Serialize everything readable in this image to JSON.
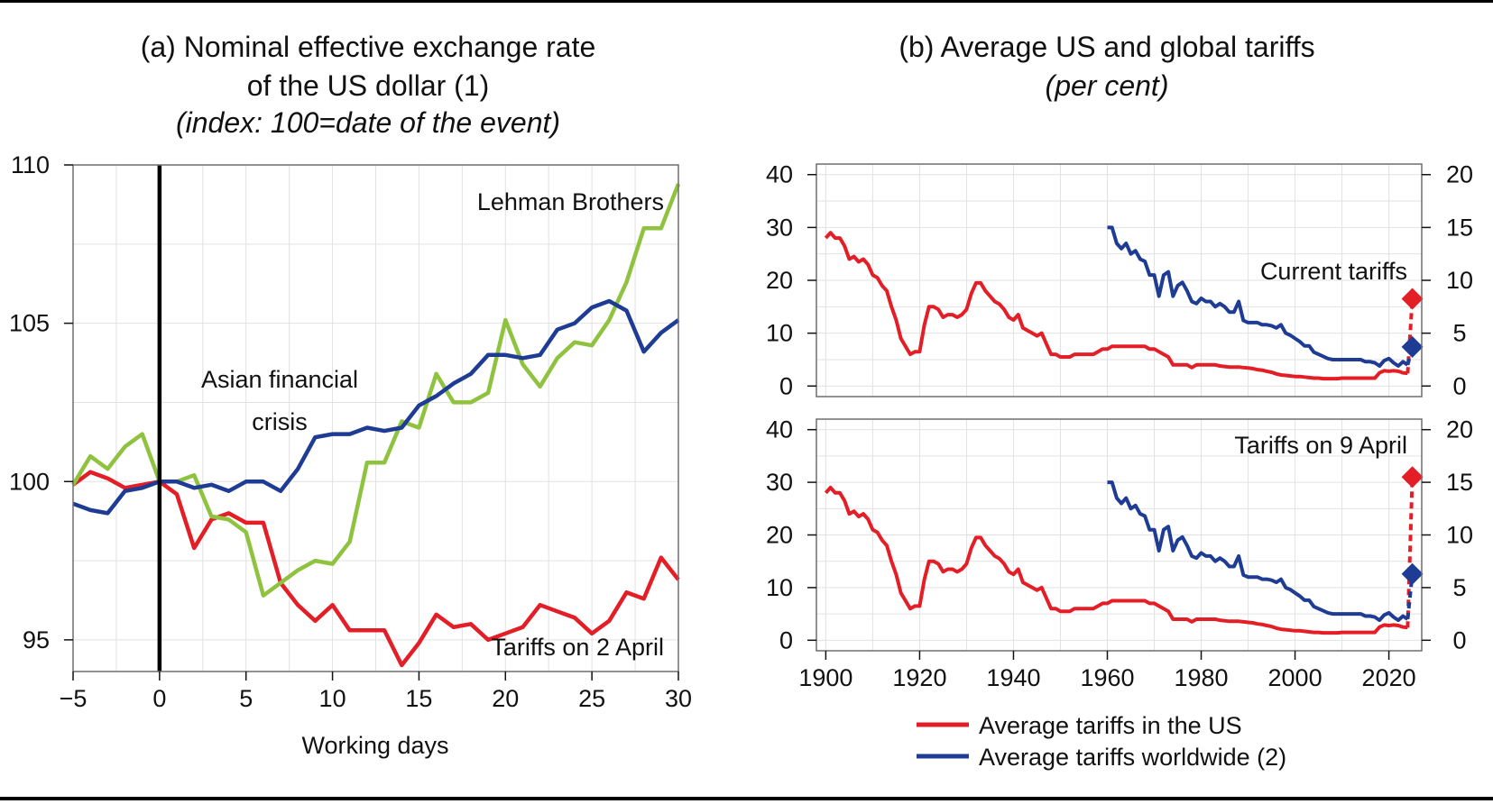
{
  "colors": {
    "red": "#e41e26",
    "green": "#8fc23f",
    "blue": "#1f3c94",
    "grid": "#e2e2e2",
    "frame": "#6e6e6e"
  },
  "panel_a": {
    "title_line1": "(a) Nominal effective exchange rate",
    "title_line2": "of the US dollar (1)",
    "subtitle": "(index: 100=date of the event)"
  },
  "panel_b": {
    "title": "(b) Average US and global tariffs",
    "subtitle": "(per cent)"
  },
  "chart_data": [
    {
      "id": "a",
      "type": "line",
      "title": "(a) Nominal effective exchange rate of the US dollar (1)",
      "subtitle": "(index: 100=date of the event)",
      "xlabel": "Working days",
      "ylabel": "",
      "xlim": [
        -5,
        30
      ],
      "ylim": [
        94,
        110
      ],
      "x_ticks": [
        "−5",
        "0",
        "5",
        "10",
        "15",
        "20",
        "25",
        "30"
      ],
      "y_ticks": [
        "95",
        "100",
        "105",
        "110"
      ],
      "grid": true,
      "event_line_x": 0,
      "annotations": [
        "Lehman Brothers",
        "Asian financial",
        "crisis",
        "Tariffs on 2 April"
      ],
      "x": [
        -5,
        -4,
        -3,
        -2,
        -1,
        0,
        1,
        2,
        3,
        4,
        5,
        6,
        7,
        8,
        9,
        10,
        11,
        12,
        13,
        14,
        15,
        16,
        17,
        18,
        19,
        20,
        21,
        22,
        23,
        24,
        25,
        26,
        27,
        28,
        29,
        30
      ],
      "series": [
        {
          "label": "Tariffs on 2 April",
          "color": "red",
          "values": [
            99.9,
            100.3,
            100.1,
            99.8,
            99.9,
            100,
            99.6,
            97.9,
            98.8,
            99.0,
            98.7,
            98.7,
            96.8,
            96.1,
            95.6,
            96.1,
            95.3,
            95.3,
            95.3,
            94.2,
            94.9,
            95.8,
            95.4,
            95.5,
            95.0,
            95.2,
            95.4,
            96.1,
            95.9,
            95.7,
            95.2,
            95.6,
            96.5,
            96.3,
            97.6,
            96.9
          ]
        },
        {
          "label": "Lehman Brothers",
          "color": "green",
          "values": [
            99.9,
            100.8,
            100.4,
            101.1,
            101.5,
            100,
            100.0,
            100.2,
            98.9,
            98.8,
            98.4,
            96.4,
            96.8,
            97.2,
            97.5,
            97.4,
            98.1,
            100.6,
            100.6,
            101.9,
            101.7,
            103.4,
            102.5,
            102.5,
            102.8,
            105.1,
            103.7,
            103.0,
            103.9,
            104.4,
            104.3,
            105.1,
            106.3,
            108.0,
            108.0,
            109.4
          ]
        },
        {
          "label": "Asian financial crisis",
          "color": "blue",
          "values": [
            99.3,
            99.1,
            99.0,
            99.7,
            99.8,
            100,
            100.0,
            99.8,
            99.9,
            99.7,
            100.0,
            100.0,
            99.7,
            100.4,
            101.4,
            101.5,
            101.5,
            101.7,
            101.6,
            101.7,
            102.4,
            102.7,
            103.1,
            103.4,
            104.0,
            104.0,
            103.9,
            104.0,
            104.8,
            105.0,
            105.5,
            105.7,
            105.4,
            104.1,
            104.7,
            105.1
          ]
        }
      ]
    },
    {
      "id": "b-top",
      "type": "line",
      "title": "(b) Average US and global tariffs",
      "subtitle": "(per cent)",
      "annotation": "Current tariffs",
      "xlim": [
        1898,
        2027
      ],
      "ylim_left": [
        -2,
        42
      ],
      "ylim_right": [
        -1,
        21
      ],
      "y_ticks_left": [
        "0",
        "10",
        "20",
        "30",
        "40"
      ],
      "y_ticks_right": [
        "0",
        "5",
        "10",
        "15",
        "20"
      ],
      "grid": true,
      "endpoints": {
        "us_2025": 16.5,
        "world_2025": 3.7
      },
      "series": [
        {
          "name": "Average tariffs in the US",
          "color": "red",
          "axis": "left",
          "points": [
            [
              1900,
              28
            ],
            [
              1901,
              29
            ],
            [
              1902,
              28
            ],
            [
              1903,
              28
            ],
            [
              1904,
              26.5
            ],
            [
              1905,
              24
            ],
            [
              1906,
              24.5
            ],
            [
              1907,
              23.5
            ],
            [
              1908,
              24
            ],
            [
              1909,
              23
            ],
            [
              1910,
              21
            ],
            [
              1911,
              20.5
            ],
            [
              1912,
              19
            ],
            [
              1913,
              18
            ],
            [
              1914,
              15
            ],
            [
              1915,
              12.5
            ],
            [
              1916,
              9
            ],
            [
              1917,
              7.5
            ],
            [
              1918,
              6
            ],
            [
              1919,
              6.5
            ],
            [
              1920,
              6.5
            ],
            [
              1921,
              11.5
            ],
            [
              1922,
              15
            ],
            [
              1923,
              15
            ],
            [
              1924,
              14.5
            ],
            [
              1925,
              13
            ],
            [
              1926,
              13.5
            ],
            [
              1927,
              13.5
            ],
            [
              1928,
              13
            ],
            [
              1929,
              13.5
            ],
            [
              1930,
              14.5
            ],
            [
              1931,
              17.5
            ],
            [
              1932,
              19.5
            ],
            [
              1933,
              19.5
            ],
            [
              1934,
              18
            ],
            [
              1935,
              17
            ],
            [
              1936,
              16
            ],
            [
              1937,
              15.5
            ],
            [
              1938,
              14.5
            ],
            [
              1939,
              13
            ],
            [
              1940,
              12.5
            ],
            [
              1941,
              13.5
            ],
            [
              1942,
              11
            ],
            [
              1943,
              10.5
            ],
            [
              1944,
              10
            ],
            [
              1945,
              9.5
            ],
            [
              1946,
              10
            ],
            [
              1947,
              8
            ],
            [
              1948,
              6
            ],
            [
              1949,
              6
            ],
            [
              1950,
              5.5
            ],
            [
              1951,
              5.5
            ],
            [
              1952,
              5.5
            ],
            [
              1953,
              6
            ],
            [
              1954,
              6
            ],
            [
              1955,
              6
            ],
            [
              1956,
              6
            ],
            [
              1957,
              6
            ],
            [
              1958,
              6.5
            ],
            [
              1959,
              7
            ],
            [
              1960,
              7
            ],
            [
              1961,
              7.5
            ],
            [
              1962,
              7.5
            ],
            [
              1963,
              7.5
            ],
            [
              1964,
              7.5
            ],
            [
              1965,
              7.5
            ],
            [
              1966,
              7.5
            ],
            [
              1967,
              7.5
            ],
            [
              1968,
              7.5
            ],
            [
              1969,
              7
            ],
            [
              1970,
              7
            ],
            [
              1971,
              6.5
            ],
            [
              1972,
              6
            ],
            [
              1973,
              5.5
            ],
            [
              1974,
              4
            ],
            [
              1975,
              4
            ],
            [
              1976,
              4
            ],
            [
              1977,
              4
            ],
            [
              1978,
              3.5
            ],
            [
              1979,
              4
            ],
            [
              1980,
              4
            ],
            [
              1981,
              4
            ],
            [
              1982,
              4
            ],
            [
              1983,
              4
            ],
            [
              1984,
              3.8
            ],
            [
              1985,
              3.7
            ],
            [
              1986,
              3.6
            ],
            [
              1987,
              3.6
            ],
            [
              1988,
              3.6
            ],
            [
              1989,
              3.5
            ],
            [
              1990,
              3.4
            ],
            [
              1991,
              3.3
            ],
            [
              1992,
              3.1
            ],
            [
              1993,
              3.0
            ],
            [
              1994,
              2.8
            ],
            [
              1995,
              2.6
            ],
            [
              1996,
              2.3
            ],
            [
              1997,
              2.1
            ],
            [
              1998,
              2.0
            ],
            [
              1999,
              1.9
            ],
            [
              2000,
              1.8
            ],
            [
              2001,
              1.8
            ],
            [
              2002,
              1.7
            ],
            [
              2003,
              1.6
            ],
            [
              2004,
              1.5
            ],
            [
              2005,
              1.5
            ],
            [
              2006,
              1.4
            ],
            [
              2007,
              1.4
            ],
            [
              2008,
              1.4
            ],
            [
              2009,
              1.4
            ],
            [
              2010,
              1.5
            ],
            [
              2011,
              1.5
            ],
            [
              2012,
              1.5
            ],
            [
              2013,
              1.5
            ],
            [
              2014,
              1.5
            ],
            [
              2015,
              1.5
            ],
            [
              2016,
              1.5
            ],
            [
              2017,
              1.5
            ],
            [
              2018,
              2.5
            ],
            [
              2019,
              2.9
            ],
            [
              2020,
              2.8
            ],
            [
              2021,
              2.9
            ],
            [
              2022,
              2.8
            ],
            [
              2023,
              2.5
            ],
            [
              2024,
              2.4
            ]
          ]
        },
        {
          "name": "Average tariffs worldwide (2)",
          "color": "blue",
          "axis": "right",
          "points": [
            [
              1960,
              15
            ],
            [
              1961,
              15
            ],
            [
              1962,
              13.5
            ],
            [
              1963,
              13
            ],
            [
              1964,
              13.5
            ],
            [
              1965,
              12.5
            ],
            [
              1966,
              12.8
            ],
            [
              1967,
              12
            ],
            [
              1968,
              11.8
            ],
            [
              1969,
              10.5
            ],
            [
              1970,
              10.5
            ],
            [
              1971,
              8.5
            ],
            [
              1972,
              10.5
            ],
            [
              1973,
              10.8
            ],
            [
              1974,
              8.5
            ],
            [
              1975,
              9.5
            ],
            [
              1976,
              9.8
            ],
            [
              1977,
              9
            ],
            [
              1978,
              8
            ],
            [
              1979,
              7.8
            ],
            [
              1980,
              8.3
            ],
            [
              1981,
              8
            ],
            [
              1982,
              8
            ],
            [
              1983,
              7.5
            ],
            [
              1984,
              7.8
            ],
            [
              1985,
              7.5
            ],
            [
              1986,
              7
            ],
            [
              1987,
              7
            ],
            [
              1988,
              8
            ],
            [
              1989,
              6.2
            ],
            [
              1990,
              6
            ],
            [
              1991,
              6
            ],
            [
              1992,
              6
            ],
            [
              1993,
              5.8
            ],
            [
              1994,
              5.8
            ],
            [
              1995,
              5.7
            ],
            [
              1996,
              5.5
            ],
            [
              1997,
              5.8
            ],
            [
              1998,
              5
            ],
            [
              1999,
              4.8
            ],
            [
              2000,
              4.5
            ],
            [
              2001,
              4.2
            ],
            [
              2002,
              3.8
            ],
            [
              2003,
              3.8
            ],
            [
              2004,
              3.2
            ],
            [
              2005,
              3
            ],
            [
              2006,
              2.8
            ],
            [
              2007,
              2.6
            ],
            [
              2008,
              2.5
            ],
            [
              2009,
              2.5
            ],
            [
              2010,
              2.5
            ],
            [
              2011,
              2.5
            ],
            [
              2012,
              2.5
            ],
            [
              2013,
              2.5
            ],
            [
              2014,
              2.5
            ],
            [
              2015,
              2.3
            ],
            [
              2016,
              2.3
            ],
            [
              2017,
              2.2
            ],
            [
              2018,
              1.9
            ],
            [
              2019,
              2.4
            ],
            [
              2020,
              2.6
            ],
            [
              2021,
              2.2
            ],
            [
              2022,
              1.9
            ],
            [
              2023,
              2.3
            ],
            [
              2024,
              2.0
            ]
          ]
        }
      ]
    },
    {
      "id": "b-bottom",
      "type": "line",
      "annotation": "Tariffs on 9 April",
      "xlim": [
        1898,
        2027
      ],
      "ylim_left": [
        -2,
        42
      ],
      "ylim_right": [
        -1,
        21
      ],
      "x_ticks": [
        "1900",
        "1920",
        "1940",
        "1960",
        "1980",
        "2000",
        "2020"
      ],
      "y_ticks_left": [
        "0",
        "10",
        "20",
        "30",
        "40"
      ],
      "y_ticks_right": [
        "0",
        "5",
        "10",
        "15",
        "20"
      ],
      "grid": true,
      "endpoints": {
        "us_2025": 31,
        "world_2025": 6.3
      },
      "series_same_as": "b-top"
    }
  ],
  "legend": {
    "placement": "bottom",
    "items": [
      {
        "label": "Average tariffs in the US",
        "color": "red"
      },
      {
        "label": "Average tariffs worldwide (2)",
        "color": "blue"
      }
    ]
  }
}
